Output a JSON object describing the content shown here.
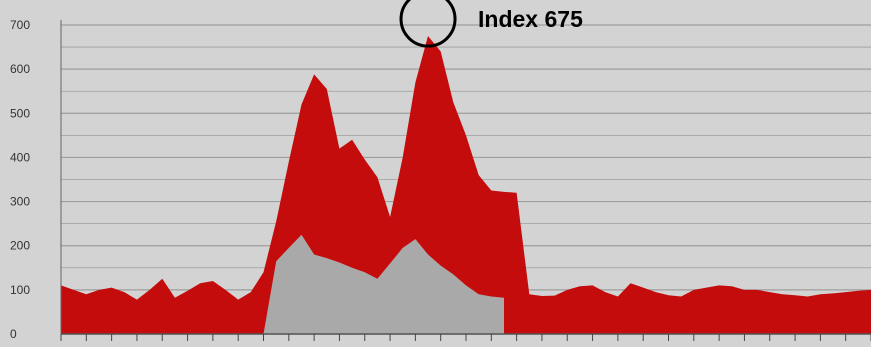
{
  "chart_data": {
    "type": "area",
    "ylim": [
      0,
      700
    ],
    "y_ticks": [
      "0",
      "100",
      "200",
      "300",
      "400",
      "500",
      "600",
      "700"
    ],
    "grid": true,
    "legend": "none",
    "x": [
      0,
      1,
      2,
      3,
      4,
      5,
      6,
      7,
      8,
      9,
      10,
      11,
      12,
      13,
      14,
      15,
      16,
      17,
      18,
      19,
      20,
      21,
      22,
      23,
      24,
      25,
      26,
      27,
      28,
      29,
      30,
      31,
      32,
      33,
      34,
      35,
      36,
      37,
      38,
      39,
      40,
      41,
      42,
      43,
      44,
      45,
      46,
      47,
      48,
      49,
      50,
      51,
      52,
      53,
      54,
      55,
      56,
      57,
      58,
      59,
      60,
      61,
      62,
      63,
      64
    ],
    "series": [
      {
        "color": "#c40c0c",
        "values": [
          110,
          100,
          90,
          100,
          105,
          95,
          78,
          100,
          125,
          82,
          98,
          115,
          120,
          100,
          78,
          95,
          140,
          255,
          390,
          520,
          588,
          555,
          420,
          440,
          395,
          355,
          265,
          400,
          570,
          675,
          640,
          525,
          450,
          360,
          325,
          322,
          320,
          90,
          86,
          87,
          100,
          108,
          110,
          95,
          85,
          115,
          105,
          95,
          88,
          85,
          100,
          105,
          110,
          108,
          100,
          100,
          95,
          90,
          88,
          85,
          90,
          92,
          95,
          98,
          100
        ]
      },
      {
        "color": "#a9a9a9",
        "values": [
          null,
          null,
          null,
          null,
          null,
          null,
          null,
          null,
          null,
          null,
          null,
          null,
          null,
          null,
          null,
          null,
          0,
          165,
          195,
          225,
          180,
          172,
          162,
          150,
          140,
          125,
          160,
          195,
          215,
          180,
          155,
          135,
          110,
          90,
          85,
          82,
          null,
          null,
          null,
          null,
          null,
          null,
          null,
          null,
          null,
          null,
          null,
          null,
          null,
          null,
          null,
          null,
          null,
          null,
          null,
          null,
          null,
          null,
          null,
          null,
          null,
          null,
          null,
          null,
          null
        ]
      }
    ],
    "annotation": {
      "text": "Index 675",
      "target_x": 29,
      "target_y": 675
    },
    "colors": {
      "background": "#d3d3d3",
      "grid": "#9e9e9e",
      "primary_area": "#c40c0c",
      "secondary_area": "#a9a9a9",
      "annotation": "#000000"
    }
  }
}
